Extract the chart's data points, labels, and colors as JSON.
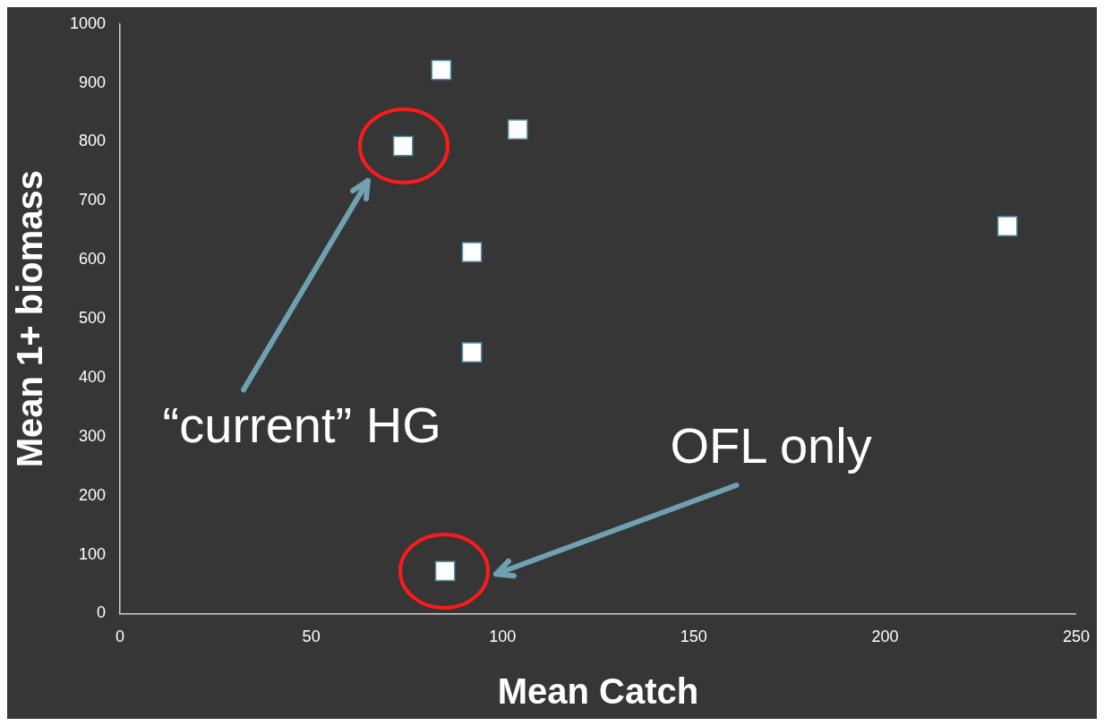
{
  "chart_data": {
    "type": "scatter",
    "xlabel": "Mean Catch",
    "ylabel": "Mean 1+ biomass",
    "x": [
      84,
      104,
      74,
      92,
      92,
      232,
      85
    ],
    "series": [
      {
        "color": "#ffffff",
        "values": [
          922,
          821,
          793,
          613,
          443,
          657,
          72
        ]
      }
    ],
    "xlim": [
      0,
      250
    ],
    "xticks": [
      0,
      50,
      100,
      150,
      200,
      250
    ],
    "ylim": [
      0,
      1000
    ],
    "yticks": [
      0,
      100,
      200,
      300,
      400,
      500,
      600,
      700,
      800,
      900,
      1000
    ],
    "marker": "square",
    "grid": false,
    "legend": false,
    "annotations": [
      "“current” HG",
      "OFL only"
    ]
  }
}
